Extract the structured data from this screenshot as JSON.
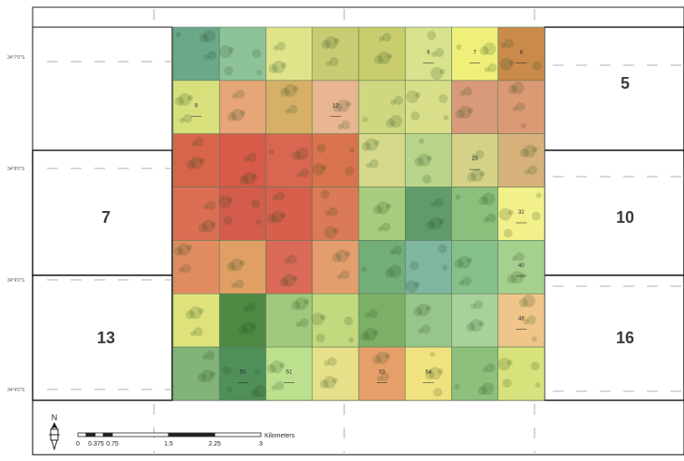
{
  "map": {
    "zones": [
      {
        "id": "zone-5",
        "label": "5"
      },
      {
        "id": "zone-7",
        "label": "7"
      },
      {
        "id": "zone-10",
        "label": "10"
      },
      {
        "id": "zone-13",
        "label": "13"
      },
      {
        "id": "zone-16",
        "label": "16"
      }
    ],
    "latitude_labels": [
      "34°7'0\"S",
      "34°8'0\"S",
      "34°9'0\"S",
      "34°4'0\"S"
    ],
    "grid_cells": {
      "rows": 7,
      "cols": 8,
      "colors": [
        [
          "#6aa88a",
          "#8ec39a",
          "#dfe48a",
          "#c8cc72",
          "#c9cd6e",
          "#d9e28c",
          "#eef07a",
          "#c98a4a"
        ],
        [
          "#d8e07c",
          "#e6a678",
          "#d7b068",
          "#e8b690",
          "#cfd880",
          "#d9df88",
          "#d89a78",
          "#dc9a74"
        ],
        [
          "#d8644a",
          "#d85a48",
          "#d96650",
          "#d9744e",
          "#d6d98a",
          "#b8d48a",
          "#d5d288",
          "#d6b27a"
        ],
        [
          "#dc6e54",
          "#d45c4c",
          "#d6604c",
          "#db7a56",
          "#a9cc7e",
          "#5f9c6a",
          "#8ac07c",
          "#f2f08a"
        ],
        [
          "#e08c60",
          "#e0a064",
          "#db6a58",
          "#e49e6e",
          "#72ad7a",
          "#7eb6a0",
          "#86c08a",
          "#a6d08e"
        ],
        [
          "#dfe27a",
          "#4e8a44",
          "#9fc87c",
          "#c3d97e",
          "#7cb067",
          "#98c68a",
          "#a9d29a",
          "#f0c58a"
        ],
        [
          "#80b479",
          "#4f8f5a",
          "#bde08e",
          "#e7e08a",
          "#e8a06a",
          "#f1e280",
          "#8cc07c",
          "#d8e27c"
        ]
      ],
      "labels": [
        {
          "row": 0,
          "col": 5,
          "text": "6"
        },
        {
          "row": 0,
          "col": 6,
          "text": "7"
        },
        {
          "row": 0,
          "col": 7,
          "text": "8"
        },
        {
          "row": 1,
          "col": 0,
          "text": "9"
        },
        {
          "row": 1,
          "col": 3,
          "text": "12"
        },
        {
          "row": 2,
          "col": 6,
          "text": "23"
        },
        {
          "row": 3,
          "col": 7,
          "text": "32"
        },
        {
          "row": 4,
          "col": 7,
          "text": "40"
        },
        {
          "row": 5,
          "col": 7,
          "text": "48"
        },
        {
          "row": 6,
          "col": 1,
          "text": "50"
        },
        {
          "row": 6,
          "col": 2,
          "text": "51"
        },
        {
          "row": 6,
          "col": 4,
          "text": "53"
        },
        {
          "row": 6,
          "col": 5,
          "text": "54"
        }
      ]
    },
    "north_arrow": {
      "label": "N"
    },
    "scale_bar": {
      "ticks": [
        "0",
        "0.375",
        "0.75",
        "1.5",
        "2.25",
        "3"
      ],
      "unit": "Kilometers"
    }
  }
}
